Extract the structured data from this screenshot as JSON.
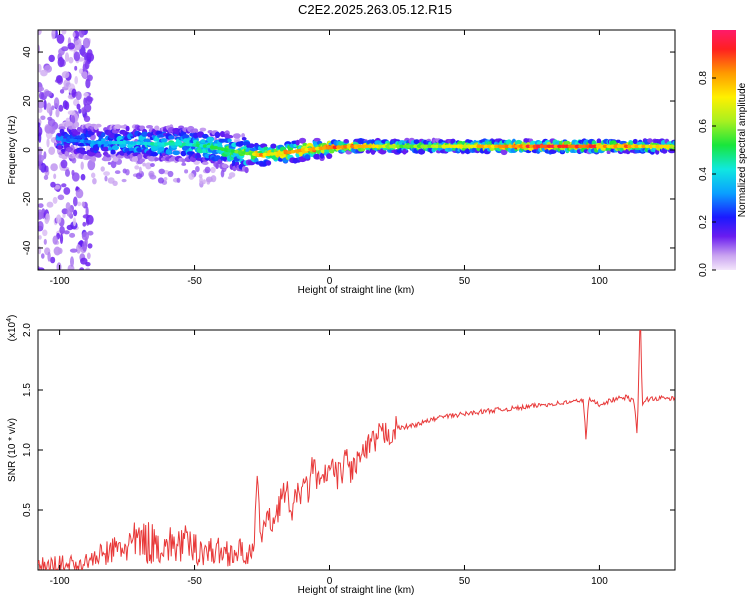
{
  "figure": {
    "title": "C2E2.2025.263.05.12.R15"
  },
  "chart_data": [
    {
      "type": "heatmap",
      "xlabel": "Height of straight line (km)",
      "ylabel": "Frequency (Hz)",
      "xlim": [
        -108,
        128
      ],
      "ylim": [
        -49,
        49
      ],
      "xticks": [
        -100,
        -50,
        0,
        50,
        100
      ],
      "yticks": [
        -40,
        -20,
        0,
        20,
        40
      ],
      "colorbar": {
        "label": "Normalized spectral amplitude",
        "range": [
          0,
          1
        ],
        "ticks": [
          0.0,
          0.2,
          0.4,
          0.6,
          0.8
        ]
      },
      "ridge": {
        "description_points_x": [
          -96,
          -85,
          -75,
          -65,
          -55,
          -45,
          -38,
          -30,
          -25,
          -20,
          -15,
          -10,
          -5,
          0,
          10,
          20,
          30,
          50,
          70,
          85,
          95,
          110,
          128
        ],
        "center_hz": [
          4,
          3,
          3,
          2.5,
          2.5,
          1.5,
          0,
          -1.5,
          -2,
          -1.5,
          -1,
          0,
          0.5,
          1,
          1.5,
          1.5,
          1.5,
          1.5,
          1.5,
          1.5,
          1.5,
          1.5,
          1.5
        ],
        "peak_amplitude": [
          0.3,
          0.35,
          0.4,
          0.45,
          0.45,
          0.5,
          0.55,
          0.6,
          0.85,
          0.75,
          0.85,
          0.85,
          0.8,
          0.9,
          0.85,
          0.7,
          0.6,
          0.75,
          0.9,
          0.95,
          0.9,
          0.85,
          0.7
        ]
      },
      "noise_region_x": [
        -108,
        -88
      ]
    },
    {
      "type": "line",
      "xlabel": "Height of straight line (km)",
      "ylabel": "SNR (10 * v/v)",
      "yscale_label": "(x10",
      "yscale_exponent": "4",
      "xlim": [
        -108,
        128
      ],
      "ylim": [
        0,
        2.0
      ],
      "xticks": [
        -100,
        -50,
        0,
        50,
        100
      ],
      "yticks": [
        0.5,
        1.0,
        1.5,
        2.0
      ],
      "ytick_labels": [
        "0.5",
        "1.0",
        "1.5",
        "2.0"
      ],
      "series": [
        {
          "name": "SNR",
          "color": "#e83a3a",
          "x": [
            -108,
            -100,
            -92,
            -88,
            -85,
            -80,
            -75,
            -70,
            -65,
            -60,
            -55,
            -50,
            -45,
            -40,
            -35,
            -30,
            -28,
            -27,
            -26,
            -25,
            -24,
            -22,
            -20,
            -18,
            -16,
            -14,
            -12,
            -10,
            -8,
            -6,
            -4,
            -2,
            0,
            2,
            4,
            6,
            8,
            10,
            12,
            14,
            16,
            18,
            20,
            22,
            25,
            30,
            35,
            40,
            50,
            60,
            70,
            80,
            90,
            94,
            95,
            96,
            100,
            105,
            110,
            113,
            114,
            115,
            116,
            117,
            120,
            125,
            128
          ],
          "y": [
            0.02,
            0.03,
            0.05,
            0.08,
            0.12,
            0.16,
            0.2,
            0.24,
            0.22,
            0.2,
            0.22,
            0.18,
            0.16,
            0.15,
            0.15,
            0.14,
            0.12,
            0.75,
            0.45,
            0.3,
            0.4,
            0.4,
            0.45,
            0.6,
            0.65,
            0.5,
            0.6,
            0.7,
            0.65,
            0.9,
            0.7,
            0.75,
            0.85,
            0.8,
            0.78,
            0.95,
            0.82,
            0.9,
            0.95,
            1.0,
            1.05,
            1.1,
            1.13,
            1.15,
            1.18,
            1.2,
            1.23,
            1.27,
            1.3,
            1.33,
            1.35,
            1.38,
            1.4,
            1.42,
            1.1,
            1.42,
            1.38,
            1.42,
            1.44,
            1.4,
            1.1,
            2.0,
            1.38,
            1.42,
            1.43,
            1.43,
            1.43
          ]
        }
      ]
    }
  ]
}
